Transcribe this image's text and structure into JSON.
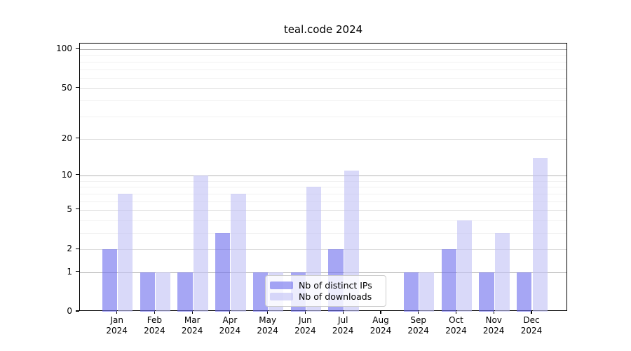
{
  "chart_data": {
    "type": "bar",
    "title": "teal.code 2024",
    "yscale": "log1p",
    "ylim": [
      0,
      111
    ],
    "y_ticks": [
      0,
      1,
      2,
      5,
      10,
      20,
      50,
      100
    ],
    "y_minor_ticks": [
      3,
      4,
      6,
      7,
      8,
      9,
      30,
      40,
      60,
      70,
      80,
      90
    ],
    "grid": "on",
    "legend_position": "inside-bottom-center",
    "categories": [
      "Jan 2024",
      "Feb 2024",
      "Mar 2024",
      "Apr 2024",
      "May 2024",
      "Jun 2024",
      "Jul 2024",
      "Aug 2024",
      "Sep 2024",
      "Oct 2024",
      "Nov 2024",
      "Dec 2024"
    ],
    "series": [
      {
        "name": "Nb of distinct IPs",
        "color": "#6b6bed",
        "opacity": 0.6,
        "values": [
          2,
          1,
          1,
          3,
          1,
          1,
          2,
          0,
          1,
          2,
          1,
          1
        ]
      },
      {
        "name": "Nb of downloads",
        "color": "#c0c0f5",
        "opacity": 0.6,
        "values": [
          7,
          1,
          10,
          7,
          1,
          8,
          11,
          0,
          1,
          4,
          3,
          14
        ]
      }
    ]
  }
}
